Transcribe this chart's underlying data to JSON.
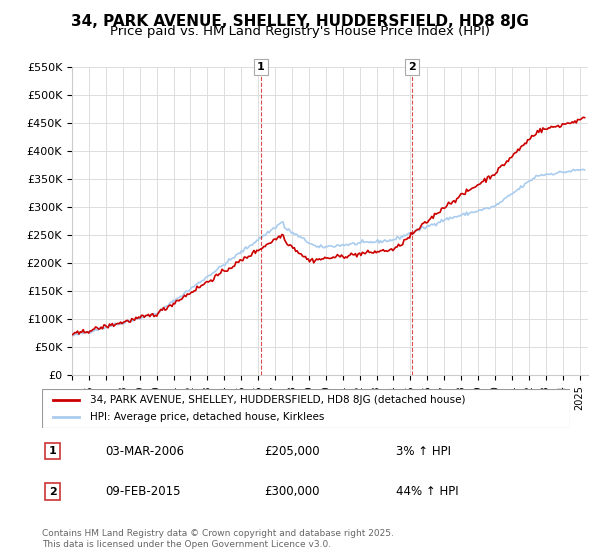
{
  "title": "34, PARK AVENUE, SHELLEY, HUDDERSFIELD, HD8 8JG",
  "subtitle": "Price paid vs. HM Land Registry's House Price Index (HPI)",
  "ylabel": "",
  "xlabel": "",
  "ylim": [
    0,
    550000
  ],
  "yticks": [
    0,
    50000,
    100000,
    150000,
    200000,
    250000,
    300000,
    350000,
    400000,
    450000,
    500000,
    550000
  ],
  "ytick_labels": [
    "£0",
    "£50K",
    "£100K",
    "£150K",
    "£200K",
    "£250K",
    "£300K",
    "£350K",
    "£400K",
    "£450K",
    "£500K",
    "£550K"
  ],
  "xlim_start": 1995.0,
  "xlim_end": 2025.5,
  "red_line_color": "#cc0000",
  "blue_line_color": "#aaccee",
  "vline1_x": 2006.17,
  "vline2_x": 2015.1,
  "vline_color": "#cc0000",
  "vline_style": "dashed",
  "marker1_label": "1",
  "marker2_label": "2",
  "legend_label_red": "34, PARK AVENUE, SHELLEY, HUDDERSFIELD, HD8 8JG (detached house)",
  "legend_label_blue": "HPI: Average price, detached house, Kirklees",
  "annotation1_num": "1",
  "annotation1_date": "03-MAR-2006",
  "annotation1_price": "£205,000",
  "annotation1_hpi": "3% ↑ HPI",
  "annotation2_num": "2",
  "annotation2_date": "09-FEB-2015",
  "annotation2_price": "£300,000",
  "annotation2_hpi": "44% ↑ HPI",
  "footer": "Contains HM Land Registry data © Crown copyright and database right 2025.\nThis data is licensed under the Open Government Licence v3.0.",
  "background_color": "#ffffff",
  "grid_color": "#dddddd",
  "title_fontsize": 11,
  "subtitle_fontsize": 9.5
}
